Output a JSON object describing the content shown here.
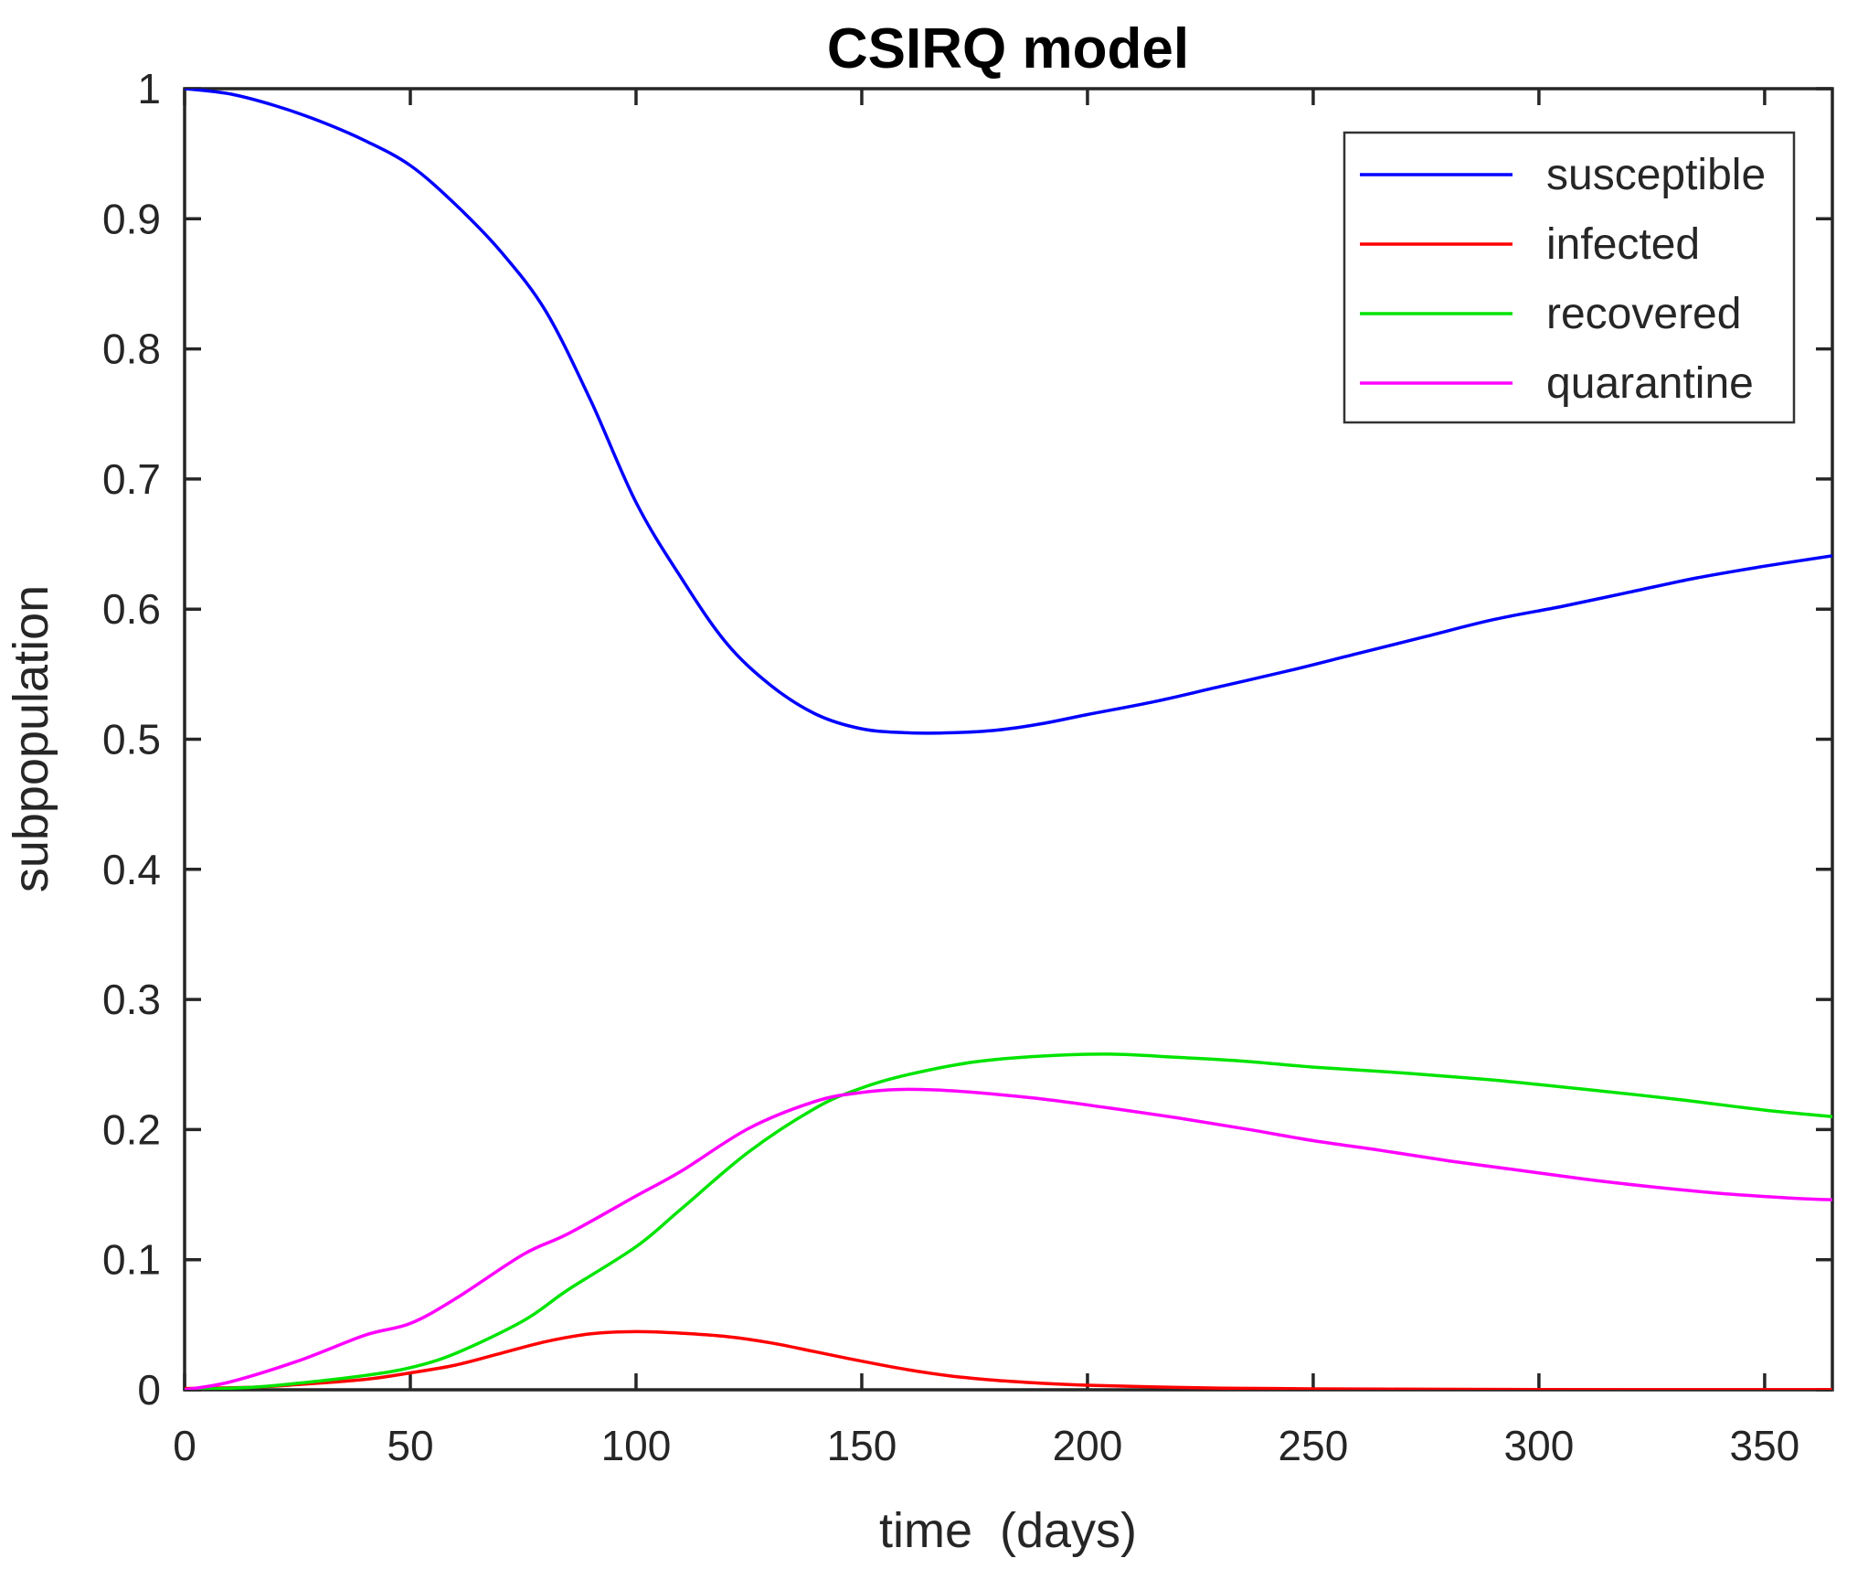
{
  "chart_data": {
    "type": "line",
    "title": "CSIRQ model",
    "xlabel": "time  (days)",
    "ylabel": "subpopulation",
    "xlim": [
      0,
      365
    ],
    "ylim": [
      0,
      1
    ],
    "xticks": [
      0,
      50,
      100,
      150,
      200,
      250,
      300,
      350
    ],
    "yticks": [
      0,
      0.1,
      0.2,
      0.3,
      0.4,
      0.5,
      0.6,
      0.7,
      0.8,
      0.9,
      1
    ],
    "xtick_labels": [
      "0",
      "50",
      "100",
      "150",
      "200",
      "250",
      "300",
      "350"
    ],
    "ytick_labels": [
      "0",
      "0.1",
      "0.2",
      "0.3",
      "0.4",
      "0.5",
      "0.6",
      "0.7",
      "0.8",
      "0.9",
      "1"
    ],
    "grid": false,
    "legend_position": "top-right",
    "axis_color": "#262626",
    "background_color": "#ffffff",
    "series": [
      {
        "name": "susceptible",
        "color": "#0000ff",
        "points": [
          [
            0,
            1.0
          ],
          [
            10,
            0.996
          ],
          [
            20,
            0.987
          ],
          [
            30,
            0.975
          ],
          [
            40,
            0.96
          ],
          [
            50,
            0.941
          ],
          [
            60,
            0.911
          ],
          [
            70,
            0.875
          ],
          [
            80,
            0.829
          ],
          [
            90,
            0.76
          ],
          [
            100,
            0.682
          ],
          [
            110,
            0.624
          ],
          [
            120,
            0.574
          ],
          [
            130,
            0.541
          ],
          [
            140,
            0.519
          ],
          [
            150,
            0.508
          ],
          [
            160,
            0.505
          ],
          [
            170,
            0.505
          ],
          [
            180,
            0.507
          ],
          [
            190,
            0.512
          ],
          [
            200,
            0.519
          ],
          [
            215,
            0.529
          ],
          [
            230,
            0.541
          ],
          [
            245,
            0.553
          ],
          [
            260,
            0.566
          ],
          [
            275,
            0.579
          ],
          [
            290,
            0.592
          ],
          [
            305,
            0.602
          ],
          [
            320,
            0.613
          ],
          [
            335,
            0.624
          ],
          [
            350,
            0.633
          ],
          [
            365,
            0.641
          ]
        ]
      },
      {
        "name": "infected",
        "color": "#ff0000",
        "points": [
          [
            0,
            0.001
          ],
          [
            15,
            0.002
          ],
          [
            25,
            0.004
          ],
          [
            40,
            0.008
          ],
          [
            50,
            0.013
          ],
          [
            60,
            0.019
          ],
          [
            70,
            0.028
          ],
          [
            80,
            0.037
          ],
          [
            90,
            0.043
          ],
          [
            100,
            0.0447
          ],
          [
            110,
            0.0435
          ],
          [
            120,
            0.041
          ],
          [
            130,
            0.036
          ],
          [
            140,
            0.029
          ],
          [
            150,
            0.022
          ],
          [
            160,
            0.0155
          ],
          [
            170,
            0.0105
          ],
          [
            180,
            0.0072
          ],
          [
            190,
            0.005
          ],
          [
            200,
            0.0035
          ],
          [
            215,
            0.0022
          ],
          [
            230,
            0.0013
          ],
          [
            250,
            0.0007
          ],
          [
            275,
            0.0004
          ],
          [
            300,
            0.0002
          ],
          [
            330,
            0.0001
          ],
          [
            365,
            0.0001
          ]
        ]
      },
      {
        "name": "recovered",
        "color": "#00e400",
        "points": [
          [
            0,
            0.0
          ],
          [
            15,
            0.002
          ],
          [
            25,
            0.005
          ],
          [
            40,
            0.011
          ],
          [
            50,
            0.017
          ],
          [
            60,
            0.028
          ],
          [
            75,
            0.053
          ],
          [
            85,
            0.077
          ],
          [
            100,
            0.11
          ],
          [
            110,
            0.139
          ],
          [
            125,
            0.183
          ],
          [
            140,
            0.217
          ],
          [
            150,
            0.232
          ],
          [
            160,
            0.242
          ],
          [
            175,
            0.252
          ],
          [
            190,
            0.2565
          ],
          [
            205,
            0.258
          ],
          [
            220,
            0.2555
          ],
          [
            235,
            0.2525
          ],
          [
            250,
            0.248
          ],
          [
            270,
            0.2435
          ],
          [
            290,
            0.238
          ],
          [
            310,
            0.231
          ],
          [
            330,
            0.2235
          ],
          [
            350,
            0.215
          ],
          [
            365,
            0.21
          ]
        ]
      },
      {
        "name": "quarantine",
        "color": "#ff00ff",
        "points": [
          [
            0,
            0.0
          ],
          [
            10,
            0.006
          ],
          [
            25,
            0.022
          ],
          [
            40,
            0.042
          ],
          [
            50,
            0.051
          ],
          [
            60,
            0.07
          ],
          [
            75,
            0.104
          ],
          [
            85,
            0.12
          ],
          [
            100,
            0.149
          ],
          [
            110,
            0.168
          ],
          [
            125,
            0.201
          ],
          [
            140,
            0.222
          ],
          [
            150,
            0.2285
          ],
          [
            158,
            0.2308
          ],
          [
            166,
            0.2305
          ],
          [
            175,
            0.2285
          ],
          [
            190,
            0.2235
          ],
          [
            205,
            0.2165
          ],
          [
            220,
            0.209
          ],
          [
            235,
            0.2005
          ],
          [
            250,
            0.1915
          ],
          [
            265,
            0.184
          ],
          [
            280,
            0.176
          ],
          [
            295,
            0.169
          ],
          [
            310,
            0.162
          ],
          [
            325,
            0.156
          ],
          [
            340,
            0.151
          ],
          [
            355,
            0.1475
          ],
          [
            365,
            0.146
          ]
        ]
      }
    ]
  }
}
